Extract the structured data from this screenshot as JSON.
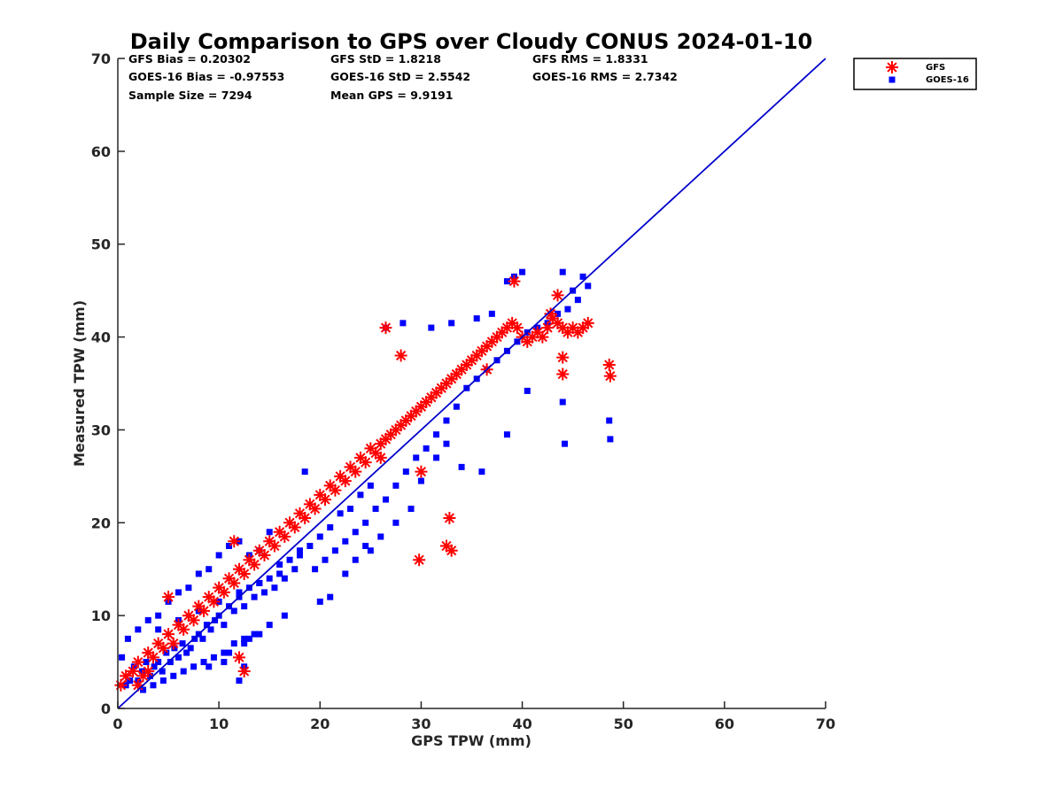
{
  "chart_data": {
    "type": "scatter",
    "title": "Daily Comparison to GPS over Cloudy CONUS 2024-01-10",
    "xlabel": "GPS TPW (mm)",
    "ylabel": "Measured TPW (mm)",
    "xlim": [
      0,
      70
    ],
    "ylim": [
      0,
      70
    ],
    "xticks": [
      "0",
      "10",
      "20",
      "30",
      "40",
      "50",
      "60",
      "70"
    ],
    "yticks": [
      "0",
      "10",
      "20",
      "30",
      "40",
      "50",
      "60",
      "70"
    ],
    "grid": false,
    "legend_position": "top-right outside",
    "reference_line": {
      "x": [
        0,
        70
      ],
      "y": [
        0,
        70
      ],
      "color": "#0000cc"
    },
    "stats": {
      "gfs_bias": "GFS Bias = 0.20302",
      "gfs_std": "GFS StD = 1.8218",
      "gfs_rms": "GFS RMS = 1.8331",
      "goes_bias": "GOES-16 Bias = -0.97553",
      "goes_std": "GOES-16 StD = 2.5542",
      "goes_rms": "GOES-16 RMS = 2.7342",
      "sample_size": "Sample Size = 7294",
      "mean_gps": "Mean GPS = 9.9191"
    },
    "series": [
      {
        "name": "GOES-16",
        "marker": "square",
        "color": "#0000ff",
        "x": [
          0.4,
          0.8,
          1.2,
          1.6,
          2.0,
          2.4,
          2.8,
          3.2,
          3.6,
          4.0,
          4.4,
          4.8,
          5.2,
          5.6,
          6.0,
          6.4,
          6.8,
          7.2,
          7.6,
          8.0,
          8.4,
          8.8,
          9.2,
          9.6,
          10.0,
          10.5,
          11.0,
          11.5,
          12.0,
          12.5,
          13.0,
          13.5,
          14.0,
          14.5,
          15.0,
          15.5,
          16.0,
          16.5,
          17.0,
          17.5,
          18.0,
          1.0,
          2.0,
          3.0,
          4.0,
          5.0,
          6.0,
          7.0,
          8.0,
          9.0,
          10.0,
          11.0,
          12.0,
          13.0,
          14.0,
          15.0,
          2.5,
          3.5,
          4.5,
          5.5,
          6.5,
          7.5,
          8.5,
          9.5,
          10.5,
          11.5,
          12.5,
          13.5,
          4.0,
          6.0,
          8.0,
          10.0,
          12.0,
          14.0,
          16.0,
          18.0,
          19.0,
          20.0,
          21.0,
          22.0,
          23.0,
          24.0,
          25.0,
          18.5,
          19.5,
          20.5,
          21.5,
          22.5,
          23.5,
          24.5,
          25.5,
          26.5,
          27.5,
          28.5,
          29.5,
          30.5,
          31.5,
          32.5,
          33.5,
          34.5,
          35.5,
          36.5,
          37.5,
          38.5,
          39.5,
          40.5,
          41.5,
          42.5,
          43.5,
          44.5,
          45.5,
          46.5,
          26.5,
          28.2,
          31.0,
          33.0,
          35.5,
          37.0,
          38.5,
          39.2,
          40.0,
          44.0,
          45.0,
          46.0,
          48.6,
          48.7,
          44.2,
          44.0,
          40.5,
          38.5,
          36.0,
          34.0,
          32.5,
          31.5,
          30.0,
          29.0,
          27.5,
          26.0,
          25.0,
          24.5,
          23.5,
          22.5,
          21.0,
          20.0,
          12.0,
          12.5,
          11.0,
          15.0,
          16.5,
          14.0,
          13.0,
          12.5,
          10.5,
          9.0
        ],
        "y": [
          5.5,
          2.5,
          3.0,
          4.5,
          3.0,
          4.0,
          5.0,
          3.5,
          4.5,
          5.0,
          4.0,
          6.0,
          5.0,
          6.5,
          5.5,
          7.0,
          6.0,
          6.5,
          7.5,
          8.0,
          7.5,
          9.0,
          8.5,
          9.5,
          10.0,
          9.0,
          11.0,
          10.5,
          12.0,
          11.0,
          13.0,
          12.0,
          13.5,
          12.5,
          14.0,
          13.0,
          15.5,
          14.0,
          16.0,
          15.0,
          17.0,
          7.5,
          8.5,
          9.5,
          10.0,
          11.5,
          12.5,
          13.0,
          14.5,
          15.0,
          16.5,
          17.5,
          18.0,
          16.5,
          17.0,
          19.0,
          2.0,
          2.5,
          3.0,
          3.5,
          4.0,
          4.5,
          5.0,
          5.5,
          6.0,
          7.0,
          7.5,
          8.0,
          8.5,
          9.5,
          10.5,
          11.5,
          12.5,
          13.5,
          14.5,
          16.5,
          17.5,
          18.5,
          19.5,
          21.0,
          21.5,
          23.0,
          24.0,
          25.5,
          15.0,
          16.0,
          17.0,
          18.0,
          19.0,
          20.0,
          21.5,
          22.5,
          24.0,
          25.5,
          27.0,
          28.0,
          29.5,
          31.0,
          32.5,
          34.5,
          35.5,
          36.5,
          37.5,
          38.5,
          39.5,
          40.5,
          41.0,
          41.5,
          42.5,
          43.0,
          44.0,
          45.5,
          41.0,
          41.5,
          41.0,
          41.5,
          42.0,
          42.5,
          46.0,
          46.5,
          47.0,
          47.0,
          45.0,
          46.5,
          31.0,
          29.0,
          28.5,
          33.0,
          34.2,
          29.5,
          25.5,
          26.0,
          28.5,
          27.0,
          24.5,
          21.5,
          20.0,
          18.5,
          17.0,
          17.5,
          16.0,
          14.5,
          12.0,
          11.5,
          3.0,
          4.5,
          6.0,
          9.0,
          10.0,
          8.0,
          7.5,
          7.0,
          5.0,
          4.5
        ]
      },
      {
        "name": "GFS",
        "marker": "asterisk",
        "color": "#ff0000",
        "x": [
          0.3,
          0.8,
          1.5,
          2.0,
          2.5,
          3.0,
          3.5,
          4.0,
          4.5,
          5.0,
          5.5,
          6.0,
          6.5,
          7.0,
          7.5,
          8.0,
          8.5,
          9.0,
          9.5,
          10.0,
          10.5,
          11.0,
          11.5,
          12.0,
          12.5,
          13.0,
          13.5,
          14.0,
          14.5,
          15.0,
          15.5,
          16.0,
          16.5,
          17.0,
          17.5,
          18.0,
          18.5,
          19.0,
          19.5,
          20.0,
          20.5,
          21.0,
          21.5,
          22.0,
          22.5,
          23.0,
          23.5,
          24.0,
          24.5,
          25.0,
          25.5,
          26.0,
          26.5,
          27.0,
          27.5,
          28.0,
          28.5,
          29.0,
          29.5,
          30.0,
          30.5,
          31.0,
          31.5,
          32.0,
          32.5,
          33.0,
          33.5,
          34.0,
          34.5,
          35.0,
          35.5,
          36.0,
          36.5,
          37.0,
          37.5,
          38.0,
          38.5,
          39.0,
          39.5,
          40.0,
          40.5,
          41.0,
          41.5,
          42.0,
          42.5,
          43.0,
          43.5,
          44.0,
          44.5,
          45.0,
          45.5,
          46.0,
          46.5,
          48.6,
          48.7,
          44.0,
          44.0,
          42.8,
          43.5,
          39.2,
          36.5,
          28.0,
          26.5,
          32.5,
          33.0,
          32.8,
          29.8,
          30.0,
          26.0,
          12.0,
          12.5,
          11.5,
          5.0,
          3.0,
          2.0
        ],
        "y": [
          2.5,
          3.5,
          4.0,
          5.0,
          3.5,
          6.0,
          5.5,
          7.0,
          6.5,
          8.0,
          7.0,
          9.0,
          8.5,
          10.0,
          9.5,
          11.0,
          10.5,
          12.0,
          11.5,
          13.0,
          12.5,
          14.0,
          13.5,
          15.0,
          14.5,
          16.0,
          15.5,
          17.0,
          16.5,
          18.0,
          17.5,
          19.0,
          18.5,
          20.0,
          19.5,
          21.0,
          20.5,
          22.0,
          21.5,
          23.0,
          22.5,
          24.0,
          23.5,
          25.0,
          24.5,
          26.0,
          25.5,
          27.0,
          26.5,
          28.0,
          27.5,
          28.5,
          29.0,
          29.5,
          30.0,
          30.5,
          31.0,
          31.5,
          32.0,
          32.5,
          33.0,
          33.5,
          34.0,
          34.5,
          35.0,
          35.5,
          36.0,
          36.5,
          37.0,
          37.5,
          38.0,
          38.5,
          39.0,
          39.5,
          40.0,
          40.5,
          41.0,
          41.5,
          41.0,
          40.0,
          39.5,
          40.0,
          40.5,
          40.0,
          41.0,
          42.0,
          41.5,
          41.0,
          40.5,
          41.0,
          40.5,
          41.0,
          41.5,
          37.0,
          35.8,
          37.8,
          36.0,
          42.5,
          44.5,
          46.0,
          36.5,
          38.0,
          41.0,
          17.5,
          17.0,
          20.5,
          16.0,
          25.5,
          27.0,
          5.5,
          4.0,
          18.0,
          12.0,
          4.0,
          2.5
        ]
      }
    ]
  }
}
